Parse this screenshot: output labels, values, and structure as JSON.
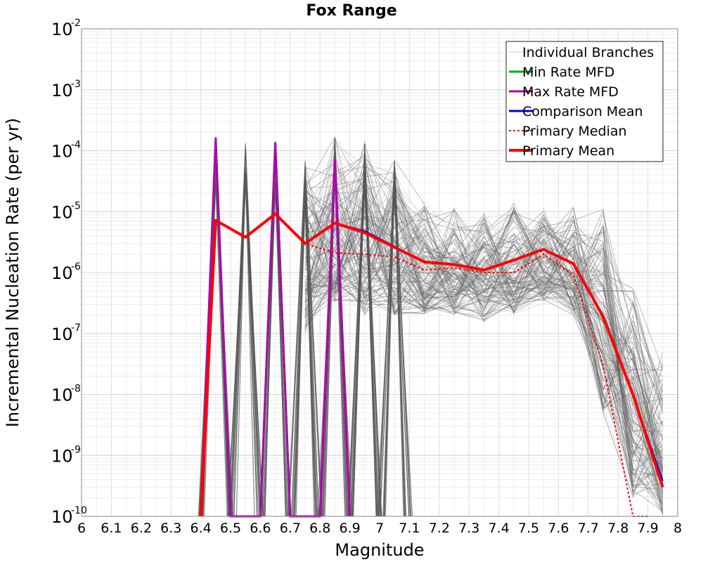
{
  "chart_data": {
    "type": "line",
    "title": "Fox Range",
    "xlabel": "Magnitude",
    "ylabel": "Incremental Nucleation Rate (per yr)",
    "x_range": [
      6.0,
      8.0
    ],
    "y_range": [
      1e-10,
      0.01
    ],
    "y_scale": "log",
    "grid": true,
    "legend_position": "top-right",
    "x_ticks": [
      "6",
      "6.1",
      "6.2",
      "6.3",
      "6.4",
      "6.5",
      "6.6",
      "6.7",
      "6.8",
      "6.9",
      "7",
      "7.1",
      "7.2",
      "7.3",
      "7.4",
      "7.5",
      "7.6",
      "7.7",
      "7.8",
      "7.9",
      "8"
    ],
    "y_ticks": [
      {
        "base": "10",
        "exp": "-10"
      },
      {
        "base": "10",
        "exp": "-9"
      },
      {
        "base": "10",
        "exp": "-8"
      },
      {
        "base": "10",
        "exp": "-7"
      },
      {
        "base": "10",
        "exp": "-6"
      },
      {
        "base": "10",
        "exp": "-5"
      },
      {
        "base": "10",
        "exp": "-4"
      },
      {
        "base": "10",
        "exp": "-3"
      },
      {
        "base": "10",
        "exp": "-2"
      }
    ],
    "legend": [
      {
        "label": "Individual Branches",
        "color": "#c8c8c8",
        "style": "thin"
      },
      {
        "label": "Min Rate MFD",
        "color": "#00b000",
        "style": "solid"
      },
      {
        "label": "Max Rate MFD",
        "color": "#b000b0",
        "style": "solid"
      },
      {
        "label": "Comparison Mean",
        "color": "#0000e0",
        "style": "solid"
      },
      {
        "label": " Primary Median",
        "color": "#ff0000",
        "style": "dotted"
      },
      {
        "label": "Primary Mean",
        "color": "#ff0000",
        "style": "thick"
      }
    ],
    "series": [
      {
        "name": "Primary Mean",
        "color": "#ff0000",
        "x": [
          6.4,
          6.45,
          6.55,
          6.65,
          6.75,
          6.85,
          6.95,
          7.05,
          7.15,
          7.25,
          7.35,
          7.45,
          7.55,
          7.65,
          7.75,
          7.85,
          7.95
        ],
        "y": [
          1e-10,
          7.2e-06,
          3.8e-06,
          9.2e-06,
          3e-06,
          6.5e-06,
          4.5e-06,
          2.6e-06,
          1.5e-06,
          1.35e-06,
          1.1e-06,
          1.6e-06,
          2.4e-06,
          1.4e-06,
          1.9e-07,
          1e-08,
          3e-10
        ]
      },
      {
        "name": "Primary Median",
        "color": "#ff0000",
        "x": [
          6.4,
          6.45,
          6.55,
          6.65,
          6.75,
          6.85,
          6.95,
          7.05,
          7.15,
          7.25,
          7.35,
          7.45,
          7.55,
          7.65,
          7.75,
          7.85,
          7.9
        ],
        "y": [
          1e-10,
          7.2e-06,
          3.8e-06,
          9.2e-06,
          3e-06,
          2.1e-06,
          2e-06,
          1.8e-06,
          1.1e-06,
          1.2e-06,
          1e-06,
          1e-06,
          2e-06,
          9e-07,
          3e-08,
          1e-10,
          1e-10
        ]
      },
      {
        "name": "Comparison Mean",
        "color": "#0000e0",
        "x": [
          6.85,
          6.95,
          7.05,
          7.15,
          7.25,
          7.35,
          7.45,
          7.55,
          7.65,
          7.75,
          7.85,
          7.95
        ],
        "y": [
          6.5e-06,
          4.8e-06,
          2.7e-06,
          1.45e-06,
          1.35e-06,
          1.1e-06,
          1.6e-06,
          2.4e-06,
          1.4e-06,
          1.9e-07,
          1e-08,
          3.8e-10
        ]
      },
      {
        "name": "Max Rate MFD",
        "color": "#b000b0",
        "x": [
          6.4,
          6.45,
          6.5,
          6.6,
          6.65,
          6.7,
          6.8,
          6.85,
          6.9
        ],
        "y": [
          1e-10,
          0.00016,
          1e-10,
          1e-10,
          0.00013,
          1e-10,
          1e-10,
          7e-05,
          1e-10
        ]
      },
      {
        "name": "Min Rate MFD",
        "color": "#00b000",
        "x": [
          6.4,
          6.45,
          6.5,
          6.6,
          6.65,
          6.7
        ],
        "y": [
          1e-10,
          0.00014,
          1e-10,
          1e-10,
          0.000135,
          1e-10
        ]
      }
    ],
    "branch_envelope": {
      "x": [
        6.75,
        6.85,
        6.95,
        7.05,
        7.15,
        7.25,
        7.35,
        7.45,
        7.55,
        7.65,
        7.75,
        7.85,
        7.95
      ],
      "upper": [
        7e-05,
        0.00018,
        0.00015,
        8e-05,
        1.5e-05,
        1.2e-05,
        1e-05,
        1.4e-05,
        1.4e-05,
        1.2e-05,
        1.2e-05,
        7e-07,
        5e-08
      ],
      "lower": [
        1e-07,
        3e-07,
        2e-07,
        2e-07,
        2e-07,
        2e-07,
        1.5e-07,
        2e-07,
        3e-07,
        2e-07,
        5e-09,
        2e-10,
        1e-10
      ]
    }
  }
}
